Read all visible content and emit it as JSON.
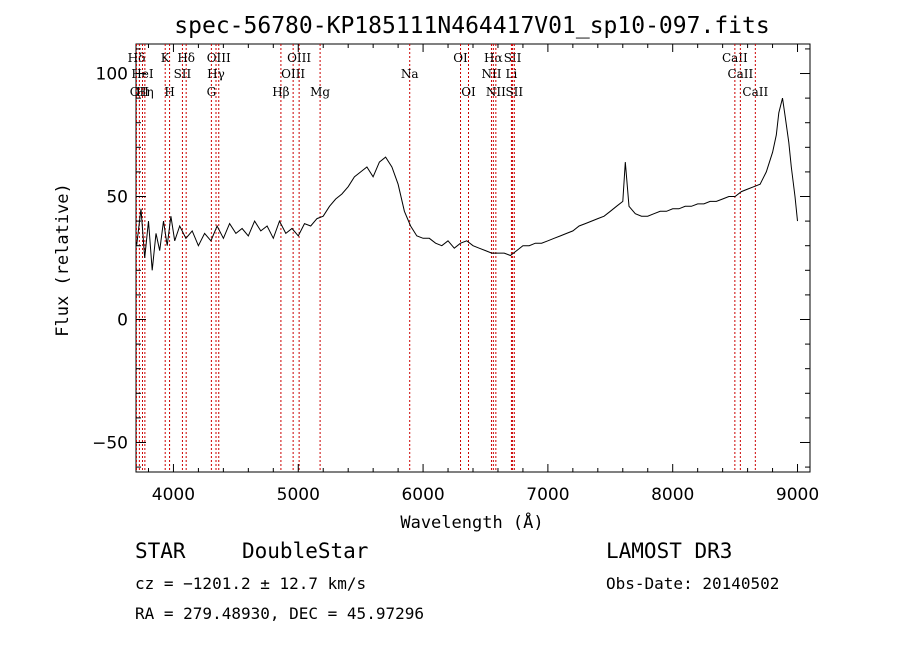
{
  "chart_data": {
    "type": "line",
    "title": "spec-56780-KP185111N464417V01_sp10-097.fits",
    "xlabel": "Wavelength (Å)",
    "ylabel": "Flux (relative)",
    "xlim": [
      3700,
      9100
    ],
    "ylim": [
      -62,
      112
    ],
    "x_ticks": [
      4000,
      5000,
      6000,
      7000,
      8000,
      9000
    ],
    "y_ticks": [
      -50,
      0,
      50,
      100
    ],
    "grid": false,
    "line_color": "#000000",
    "marker_color": "#cc0000",
    "series": [
      {
        "x": [
          3705,
          3740,
          3770,
          3800,
          3830,
          3860,
          3890,
          3920,
          3950,
          3980,
          4010,
          4050,
          4100,
          4150,
          4200,
          4250,
          4300,
          4350,
          4400,
          4450,
          4500,
          4550,
          4600,
          4650,
          4700,
          4750,
          4800,
          4850,
          4900,
          4950,
          5000,
          5050,
          5100,
          5150,
          5200,
          5250,
          5300,
          5350,
          5400,
          5450,
          5500,
          5550,
          5600,
          5650,
          5700,
          5750,
          5800,
          5850,
          5900,
          5950,
          6000,
          6050,
          6100,
          6150,
          6200,
          6250,
          6300,
          6350,
          6400,
          6450,
          6500,
          6550,
          6600,
          6650,
          6700,
          6750,
          6800,
          6850,
          6900,
          6950,
          7000,
          7050,
          7100,
          7150,
          7200,
          7250,
          7300,
          7350,
          7400,
          7450,
          7500,
          7550,
          7600,
          7620,
          7650,
          7700,
          7750,
          7800,
          7850,
          7900,
          7950,
          8000,
          8050,
          8100,
          8150,
          8200,
          8250,
          8300,
          8350,
          8400,
          8450,
          8500,
          8550,
          8600,
          8650,
          8700,
          8750,
          8800,
          8830,
          8850,
          8880,
          8900,
          8930,
          8950,
          8980,
          9000
        ],
        "values": [
          30,
          45,
          25,
          40,
          20,
          35,
          28,
          40,
          30,
          42,
          32,
          38,
          33,
          36,
          30,
          35,
          32,
          38,
          33,
          39,
          35,
          37,
          34,
          40,
          36,
          38,
          33,
          40,
          35,
          37,
          34,
          39,
          38,
          41,
          42,
          46,
          49,
          51,
          54,
          58,
          60,
          62,
          58,
          64,
          66,
          62,
          55,
          44,
          38,
          34,
          33,
          33,
          31,
          30,
          32,
          29,
          31,
          32,
          30,
          29,
          28,
          27,
          27,
          27,
          26,
          28,
          30,
          30,
          31,
          31,
          32,
          33,
          34,
          35,
          36,
          38,
          39,
          40,
          41,
          42,
          44,
          46,
          48,
          64,
          46,
          43,
          42,
          42,
          43,
          44,
          44,
          45,
          45,
          46,
          46,
          47,
          47,
          48,
          48,
          49,
          50,
          50,
          52,
          53,
          54,
          55,
          60,
          68,
          75,
          84,
          90,
          83,
          72,
          62,
          50,
          40
        ]
      }
    ],
    "line_markers": [
      {
        "name": "Hδ",
        "x": 3704,
        "row": 1
      },
      {
        "name": "OII",
        "x": 3727,
        "row": 3
      },
      {
        "name": "HeI",
        "x": 3752,
        "row": 2
      },
      {
        "name": "Hη",
        "x": 3771,
        "row": 3
      },
      {
        "name": "K",
        "x": 3934,
        "row": 1
      },
      {
        "name": "H",
        "x": 3969,
        "row": 3
      },
      {
        "name": "SII",
        "x": 4072,
        "row": 2
      },
      {
        "name": "Hδ",
        "x": 4102,
        "row": 1
      },
      {
        "name": "OIII",
        "x": 4363,
        "row": 1
      },
      {
        "name": "Hγ",
        "x": 4341,
        "row": 2
      },
      {
        "name": "G",
        "x": 4304,
        "row": 3
      },
      {
        "name": "Hβ",
        "x": 4861,
        "row": 3
      },
      {
        "name": "OIII",
        "x": 4959,
        "row": 2
      },
      {
        "name": "OIII",
        "x": 5007,
        "row": 1
      },
      {
        "name": "Mg",
        "x": 5175,
        "row": 3
      },
      {
        "name": "Na",
        "x": 5893,
        "row": 2
      },
      {
        "name": "OI",
        "x": 6300,
        "row": 1
      },
      {
        "name": "OI",
        "x": 6364,
        "row": 3
      },
      {
        "name": "NII",
        "x": 6548,
        "row": 2
      },
      {
        "name": "Hα",
        "x": 6563,
        "row": 1
      },
      {
        "name": "NII",
        "x": 6583,
        "row": 3
      },
      {
        "name": "Li",
        "x": 6708,
        "row": 2
      },
      {
        "name": "SII",
        "x": 6717,
        "row": 1
      },
      {
        "name": "SII",
        "x": 6731,
        "row": 3
      },
      {
        "name": "CaII",
        "x": 8498,
        "row": 1
      },
      {
        "name": "CaII",
        "x": 8542,
        "row": 2
      },
      {
        "name": "CaII",
        "x": 8662,
        "row": 3
      }
    ]
  },
  "info": {
    "class_label": "STAR",
    "subclass_label": "DoubleStar",
    "cz_line": "cz = −1201.2 ± 12.7 km/s",
    "radec_line": "RA = 279.48930, DEC =  45.97296",
    "survey_label": "LAMOST DR3",
    "obs_date_line": "Obs-Date: 20140502"
  }
}
